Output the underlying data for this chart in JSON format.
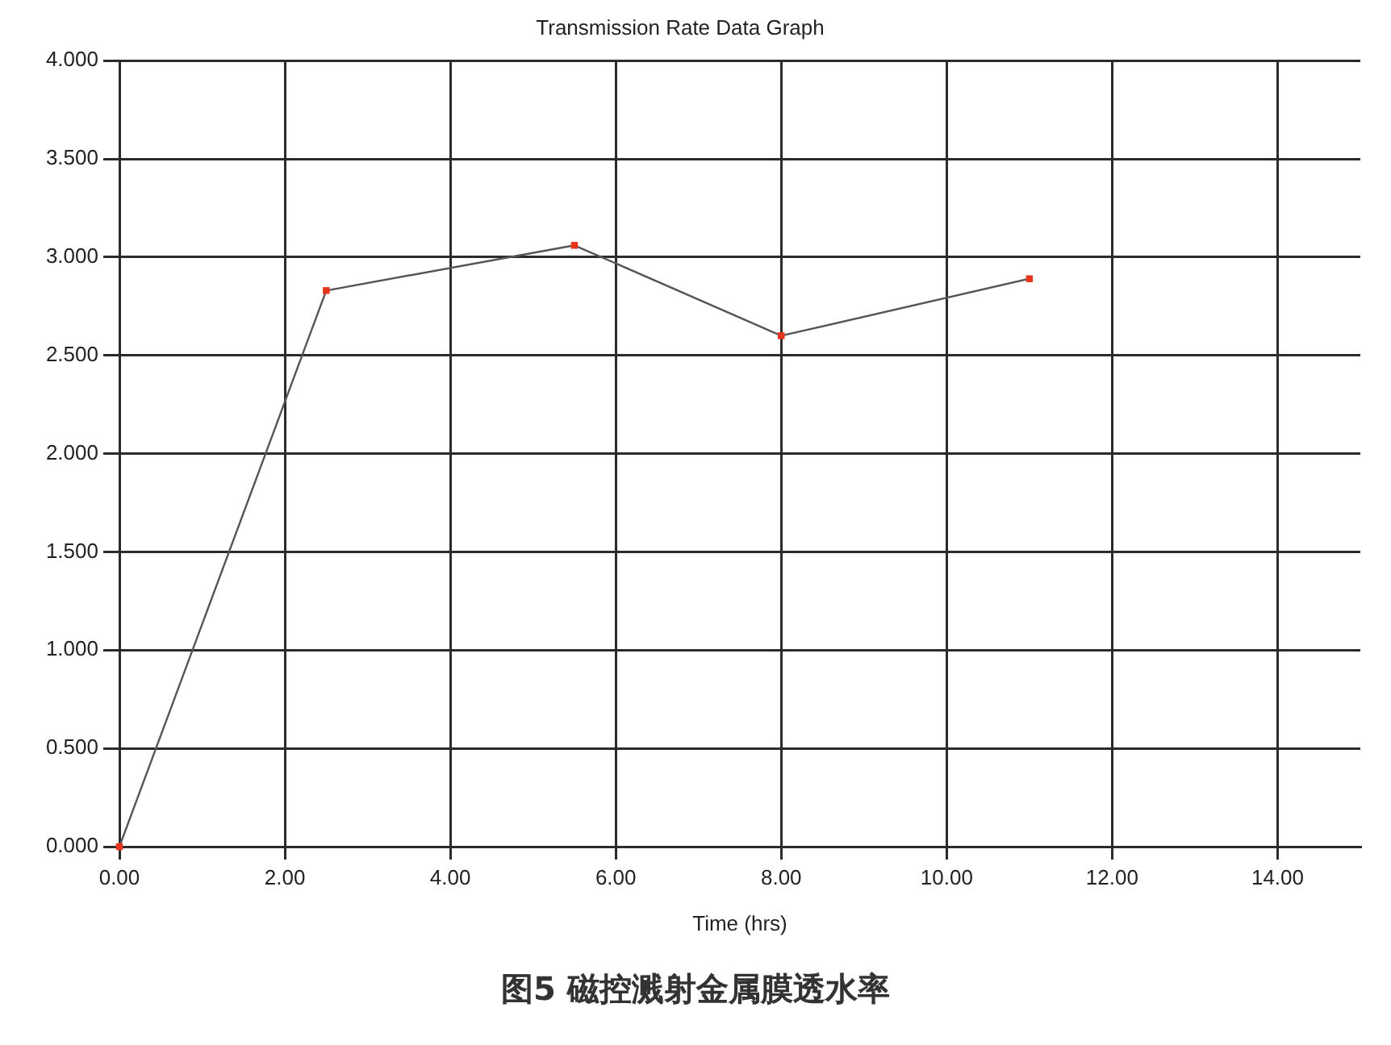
{
  "chart_data": {
    "type": "line",
    "title": "Transmission Rate Data Graph",
    "xlabel": "Time (hrs)",
    "x": [
      0,
      2.5,
      5.5,
      8,
      11
    ],
    "series": [
      {
        "color": "#555555",
        "colors": [
          "#e8341c",
          "#e8341c",
          "#e8341c",
          "#e8341c",
          "#e8341c"
        ],
        "values": [
          0,
          2.83,
          3.06,
          2.6,
          2.89
        ]
      }
    ],
    "xlim": [
      0,
      15
    ],
    "xticks": [
      {
        "value": 0,
        "label": "0.00"
      },
      {
        "value": 2,
        "label": "2.00"
      },
      {
        "value": 4,
        "label": "4.00"
      },
      {
        "value": 6,
        "label": "6.00"
      },
      {
        "value": 8,
        "label": "8.00"
      },
      {
        "value": 10,
        "label": "10.00"
      },
      {
        "value": 12,
        "label": "12.00"
      },
      {
        "value": 14,
        "label": "14.00"
      }
    ],
    "ylim": [
      0,
      4
    ],
    "yticks": [
      {
        "value": 0,
        "label": "0.000"
      },
      {
        "value": 0.5,
        "label": "0.500"
      },
      {
        "value": 1,
        "label": "1.000"
      },
      {
        "value": 1.5,
        "label": "1.500"
      },
      {
        "value": 2,
        "label": "2.000"
      },
      {
        "value": 2.5,
        "label": "2.500"
      },
      {
        "value": 3,
        "label": "3.000"
      },
      {
        "value": 3.5,
        "label": "3.500"
      },
      {
        "value": 4,
        "label": "4.000"
      }
    ],
    "grid": true,
    "marker": "square",
    "line_style": "solid",
    "annotations": [
      "图5 磁控溅射金属膜透水率"
    ]
  }
}
